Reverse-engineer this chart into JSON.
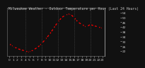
{
  "title": "Milwaukee Weather - Outdoor Temperature per Hour (Last 24 Hours)",
  "hours": [
    0,
    1,
    2,
    3,
    4,
    5,
    6,
    7,
    8,
    9,
    10,
    11,
    12,
    13,
    14,
    15,
    16,
    17,
    18,
    19,
    20,
    21,
    22,
    23
  ],
  "temps": [
    28,
    26,
    24,
    23,
    22,
    21,
    23,
    25,
    28,
    32,
    36,
    41,
    46,
    50,
    52,
    53,
    50,
    46,
    44,
    42,
    44,
    43,
    42,
    41
  ],
  "line_color": "#ff0000",
  "marker_color": "#111111",
  "bg_color": "#111111",
  "plot_bg_color": "#111111",
  "title_fg": "#cccccc",
  "grid_color": "#555555",
  "right_border_color": "#aaaaaa",
  "ylim_min": 18,
  "ylim_max": 58,
  "ytick_vals": [
    22,
    26,
    30,
    34,
    38,
    42,
    46,
    50,
    54
  ],
  "grid_hours": [
    4,
    8,
    12,
    16,
    20
  ],
  "tick_fontsize": 3.2,
  "title_fontsize": 3.5
}
